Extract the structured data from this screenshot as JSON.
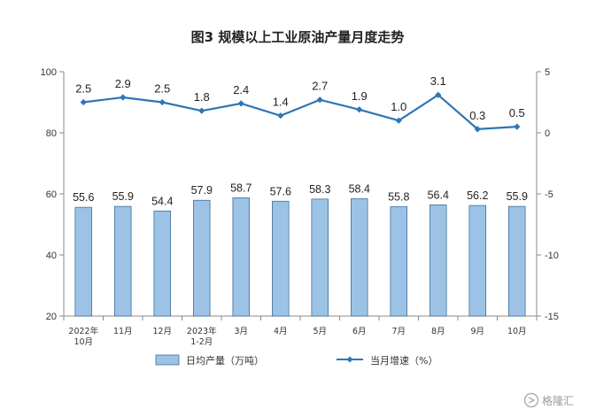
{
  "watermark": "格隆汇",
  "chart_data": {
    "type": "bar+line",
    "title": "图3  规模以上工业原油产量月度走势",
    "categories": [
      [
        "2022年",
        "10月"
      ],
      [
        "11月"
      ],
      [
        "12月"
      ],
      [
        "2023年",
        "1-2月"
      ],
      [
        "3月"
      ],
      [
        "4月"
      ],
      [
        "5月"
      ],
      [
        "6月"
      ],
      [
        "7月"
      ],
      [
        "8月"
      ],
      [
        "9月"
      ],
      [
        "10月"
      ]
    ],
    "bar_series": {
      "name": "日均产量（万吨）",
      "color": "#9cc3e6",
      "values": [
        55.6,
        55.9,
        54.4,
        57.9,
        58.7,
        57.6,
        58.3,
        58.4,
        55.8,
        56.4,
        56.2,
        55.9
      ],
      "labels": [
        "55.6",
        "55.9",
        "54.4",
        "57.9",
        "58.7",
        "57.6",
        "58.3",
        "58.4",
        "55.8",
        "56.4",
        "56.2",
        "55.9"
      ]
    },
    "line_series": {
      "name": "当月增速（%）",
      "color": "#2e75b6",
      "values": [
        2.5,
        2.9,
        2.5,
        1.8,
        2.4,
        1.4,
        2.7,
        1.9,
        1.0,
        3.1,
        0.3,
        0.5
      ],
      "labels": [
        "2.5",
        "2.9",
        "2.5",
        "1.8",
        "2.4",
        "1.4",
        "2.7",
        "1.9",
        "1.0",
        "3.1",
        "0.3",
        "0.5"
      ]
    },
    "y_left": {
      "range": [
        20,
        100
      ],
      "ticks": [
        "20",
        "40",
        "60",
        "80",
        "100"
      ]
    },
    "y_right": {
      "range": [
        -15,
        5
      ],
      "ticks": [
        "-15",
        "-10",
        "-5",
        "0",
        "5"
      ]
    },
    "grid": false,
    "legend_position": "bottom"
  }
}
